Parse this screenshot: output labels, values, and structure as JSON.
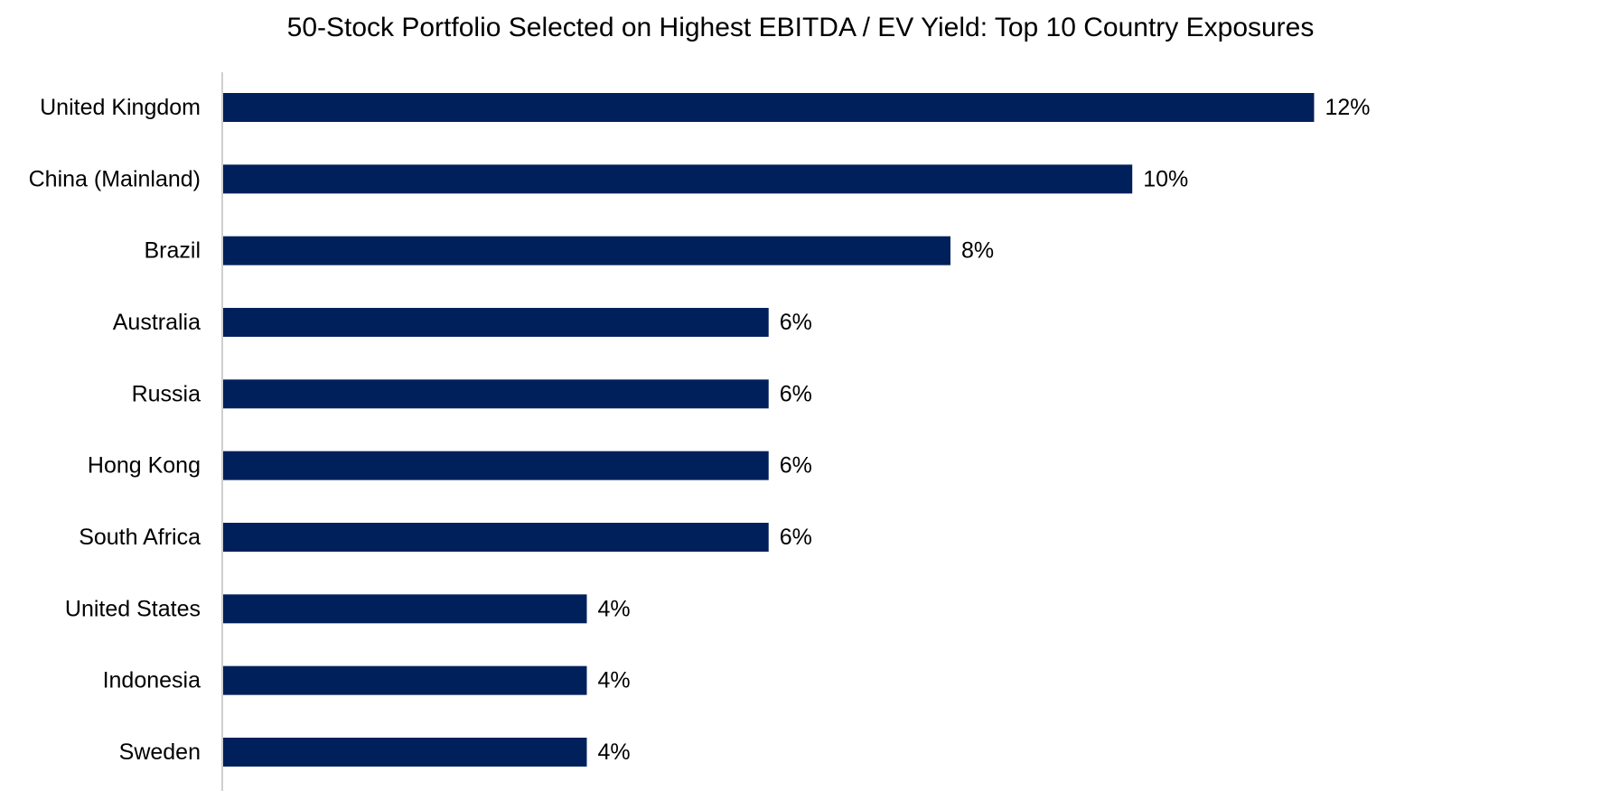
{
  "chart_data": {
    "type": "bar",
    "orientation": "horizontal",
    "title": "50-Stock Portfolio Selected on Highest EBITDA / EV Yield: Top 10 Country Exposures",
    "categories": [
      "United Kingdom",
      "China (Mainland)",
      "Brazil",
      "Australia",
      "Russia",
      "Hong Kong",
      "South Africa",
      "United States",
      "Indonesia",
      "Sweden"
    ],
    "values": [
      12,
      10,
      8,
      6,
      6,
      6,
      6,
      4,
      4,
      4
    ],
    "data_labels": [
      "12%",
      "10%",
      "8%",
      "6%",
      "6%",
      "6%",
      "6%",
      "4%",
      "4%",
      "4%"
    ],
    "value_unit": "%",
    "xlim": [
      0,
      14.5
    ],
    "bar_color": "#00205B",
    "axis_color": "#BFBFBF",
    "grid": false,
    "legend": "none"
  }
}
